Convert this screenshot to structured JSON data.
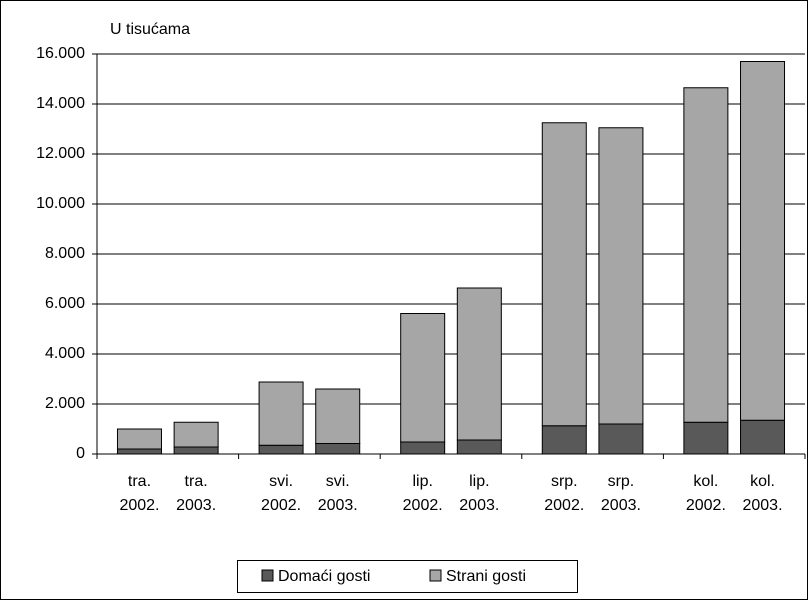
{
  "chart_data": {
    "type": "stacked_bar",
    "y_axis_label": "U tisućama",
    "categories": [
      [
        "tra.",
        "2002."
      ],
      [
        "tra.",
        "2003."
      ],
      [
        "svi.",
        "2002."
      ],
      [
        "svi.",
        "2003."
      ],
      [
        "lip.",
        "2002."
      ],
      [
        "lip.",
        "2003."
      ],
      [
        "srp.",
        "2002."
      ],
      [
        "srp.",
        "2003."
      ],
      [
        "kol.",
        "2002."
      ],
      [
        "kol.",
        "2003."
      ]
    ],
    "series": [
      {
        "name": "Domaći gosti",
        "color": "#595959",
        "values": [
          200,
          280,
          350,
          420,
          480,
          560,
          1130,
          1200,
          1270,
          1350
        ]
      },
      {
        "name": "Strani gosti",
        "color": "#a6a6a6",
        "values": [
          800,
          990,
          2530,
          2180,
          5140,
          6080,
          12120,
          11850,
          13380,
          14350
        ]
      }
    ],
    "ylim": [
      0,
      16000
    ],
    "yticks": [
      0,
      {
        "value": 2000,
        "label": "2.000"
      },
      {
        "value": 4000,
        "label": "4.000"
      },
      {
        "value": 6000,
        "label": "6.000"
      },
      {
        "value": 8000,
        "label": "8.000"
      },
      {
        "value": 10000,
        "label": "10.000"
      },
      {
        "value": 12000,
        "label": "12.000"
      },
      {
        "value": 14000,
        "label": "14.000"
      },
      {
        "value": 16000,
        "label": "16.000"
      }
    ],
    "grid": true,
    "legend": "bottom"
  }
}
